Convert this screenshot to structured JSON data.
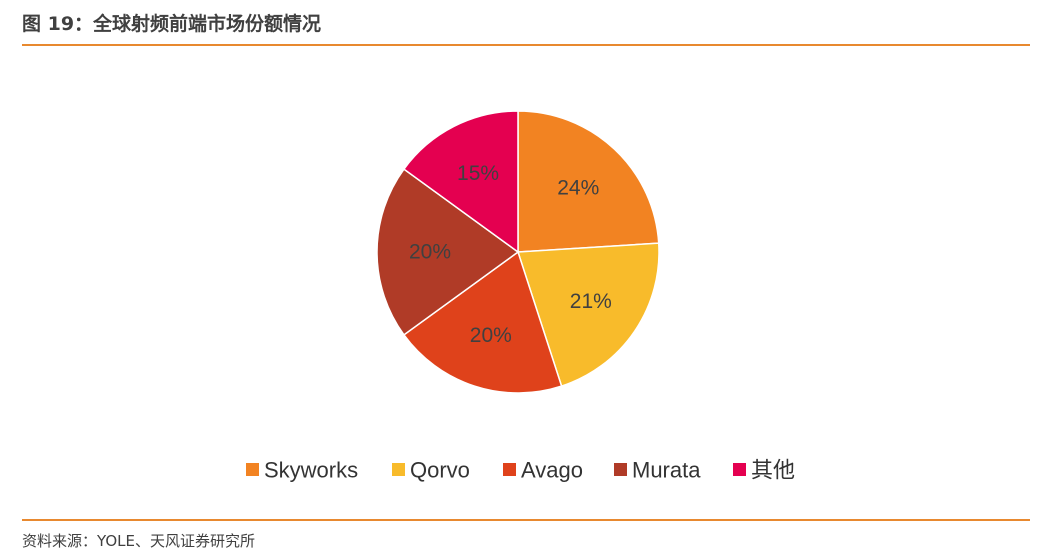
{
  "figure": {
    "title": "图 19：全球射频前端市场份额情况",
    "source": "资料来源：YOLE、天风证券研究所"
  },
  "colors": {
    "accent_rule": "#e8892f",
    "slices": [
      "#f28322",
      "#f8bb2b",
      "#df421b",
      "#b03b27",
      "#e40050"
    ]
  },
  "chart_data": {
    "type": "pie",
    "categories": [
      "Skyworks",
      "Qorvo",
      "Avago",
      "Murata",
      "其他"
    ],
    "values": [
      24,
      21,
      20,
      20,
      15
    ],
    "labels": [
      "24%",
      "21%",
      "20%",
      "20%",
      "15%"
    ],
    "legend_position": "bottom",
    "start": "12 o'clock, clockwise"
  }
}
